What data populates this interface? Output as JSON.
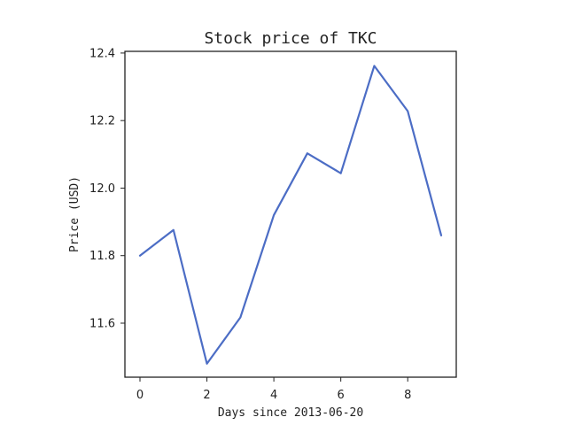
{
  "chart_data": {
    "type": "line",
    "title": "Stock price of TKC",
    "xlabel": "Days since 2013-06-20",
    "ylabel": "Price (USD)",
    "x": [
      0,
      1,
      2,
      3,
      4,
      5,
      6,
      7,
      8,
      9
    ],
    "series": [
      {
        "values": [
          11.8,
          11.876,
          11.48,
          11.617,
          11.92,
          12.103,
          12.044,
          12.362,
          12.228,
          11.86
        ],
        "color": "#4c6dc5"
      }
    ],
    "xlim": [
      -0.45,
      9.45
    ],
    "ylim": [
      11.44,
      12.405
    ],
    "xticks": [
      0,
      2,
      4,
      6,
      8
    ],
    "xtick_labels": [
      "0",
      "2",
      "4",
      "6",
      "8"
    ],
    "yticks": [
      11.6,
      11.8,
      12.0,
      12.2,
      12.4
    ],
    "ytick_labels": [
      "11.6",
      "11.8",
      "12.0",
      "12.2",
      "12.4"
    ],
    "grid": false,
    "legend": false
  }
}
